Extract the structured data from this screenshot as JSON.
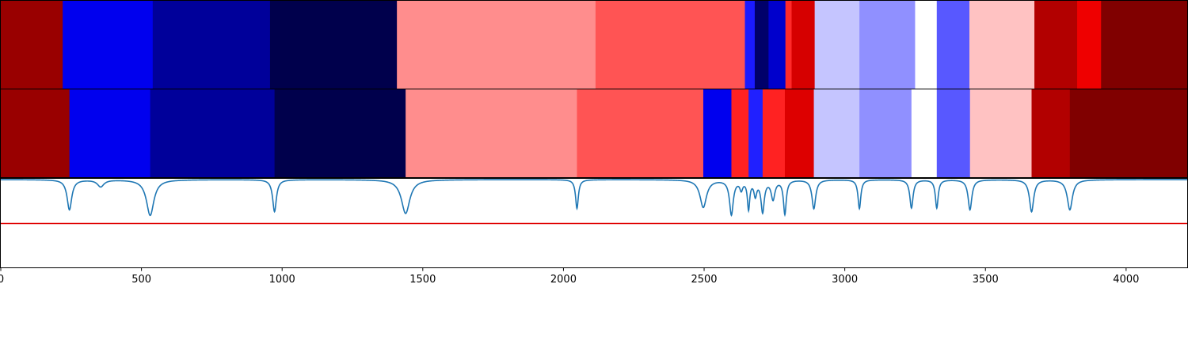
{
  "chart_data": {
    "type": "heatmap",
    "title": "",
    "xlabel": "",
    "ylabel": "",
    "xlim": [
      0,
      4220
    ],
    "x_ticks": [
      0,
      500,
      1000,
      1500,
      2000,
      2500,
      3000,
      3500,
      4000
    ],
    "x_tick_labels": [
      "0",
      "500",
      "1000",
      "1500",
      "2000",
      "2500",
      "3000",
      "3500",
      "4000"
    ],
    "colormap": "seismic",
    "color_scale": {
      "min_color": "#00004c",
      "mid_color": "#ffffff",
      "max_color": "#800000"
    },
    "bands": [
      {
        "name": "",
        "segments": [
          {
            "start": 0,
            "end": 220,
            "color": "#990000"
          },
          {
            "start": 220,
            "end": 540,
            "color": "#0000ee"
          },
          {
            "start": 540,
            "end": 957,
            "color": "#00009a"
          },
          {
            "start": 957,
            "end": 1408,
            "color": "#00004c"
          },
          {
            "start": 1408,
            "end": 2114,
            "color": "#ff8d8d"
          },
          {
            "start": 2114,
            "end": 2645,
            "color": "#ff5454"
          },
          {
            "start": 2645,
            "end": 2680,
            "color": "#1a1aff"
          },
          {
            "start": 2680,
            "end": 2729,
            "color": "#00006a"
          },
          {
            "start": 2729,
            "end": 2789,
            "color": "#0000cc"
          },
          {
            "start": 2789,
            "end": 2811,
            "color": "#ff2a2a"
          },
          {
            "start": 2811,
            "end": 2893,
            "color": "#d60000"
          },
          {
            "start": 2893,
            "end": 3052,
            "color": "#c5c5ff"
          },
          {
            "start": 3052,
            "end": 3250,
            "color": "#9090ff"
          },
          {
            "start": 3250,
            "end": 3327,
            "color": "#ffffff"
          },
          {
            "start": 3327,
            "end": 3443,
            "color": "#5858ff"
          },
          {
            "start": 3443,
            "end": 3674,
            "color": "#ffc2c2"
          },
          {
            "start": 3674,
            "end": 3826,
            "color": "#b20000"
          },
          {
            "start": 3826,
            "end": 3911,
            "color": "#ef0000"
          },
          {
            "start": 3911,
            "end": 4220,
            "color": "#800000"
          }
        ]
      },
      {
        "name": "",
        "segments": [
          {
            "start": 0,
            "end": 244,
            "color": "#990000"
          },
          {
            "start": 244,
            "end": 531,
            "color": "#0000ee"
          },
          {
            "start": 531,
            "end": 973,
            "color": "#00009a"
          },
          {
            "start": 973,
            "end": 1439,
            "color": "#00004c"
          },
          {
            "start": 1439,
            "end": 2048,
            "color": "#ff8d8d"
          },
          {
            "start": 2048,
            "end": 2497,
            "color": "#ff5454"
          },
          {
            "start": 2497,
            "end": 2597,
            "color": "#0000ee"
          },
          {
            "start": 2597,
            "end": 2658,
            "color": "#ff2222"
          },
          {
            "start": 2658,
            "end": 2708,
            "color": "#2020ff"
          },
          {
            "start": 2708,
            "end": 2787,
            "color": "#ff2222"
          },
          {
            "start": 2787,
            "end": 2890,
            "color": "#dd0000"
          },
          {
            "start": 2890,
            "end": 3052,
            "color": "#c5c5ff"
          },
          {
            "start": 3052,
            "end": 3237,
            "color": "#9090ff"
          },
          {
            "start": 3237,
            "end": 3327,
            "color": "#ffffff"
          },
          {
            "start": 3327,
            "end": 3445,
            "color": "#5858ff"
          },
          {
            "start": 3445,
            "end": 3664,
            "color": "#ffc2c2"
          },
          {
            "start": 3664,
            "end": 3800,
            "color": "#b20000"
          },
          {
            "start": 3800,
            "end": 4220,
            "color": "#800000"
          }
        ]
      }
    ],
    "spectrum": {
      "color": "#1f77b4",
      "baseline": 0.0,
      "ylim": [
        -1.4,
        0.0
      ],
      "threshold": -0.7,
      "threshold_color": "#e00000",
      "peaks": [
        {
          "x": 244,
          "depth": 0.48,
          "width": 10
        },
        {
          "x": 355,
          "depth": 0.11,
          "width": 14
        },
        {
          "x": 531,
          "depth": 0.57,
          "width": 16
        },
        {
          "x": 973,
          "depth": 0.51,
          "width": 8
        },
        {
          "x": 1439,
          "depth": 0.54,
          "width": 18
        },
        {
          "x": 2048,
          "depth": 0.46,
          "width": 6
        },
        {
          "x": 2497,
          "depth": 0.44,
          "width": 14
        },
        {
          "x": 2597,
          "depth": 0.55,
          "width": 8
        },
        {
          "x": 2632,
          "depth": 0.14,
          "width": 6
        },
        {
          "x": 2658,
          "depth": 0.45,
          "width": 5
        },
        {
          "x": 2682,
          "depth": 0.23,
          "width": 6
        },
        {
          "x": 2708,
          "depth": 0.5,
          "width": 7
        },
        {
          "x": 2745,
          "depth": 0.3,
          "width": 8
        },
        {
          "x": 2787,
          "depth": 0.54,
          "width": 6
        },
        {
          "x": 2890,
          "depth": 0.46,
          "width": 8
        },
        {
          "x": 3052,
          "depth": 0.46,
          "width": 6
        },
        {
          "x": 3237,
          "depth": 0.45,
          "width": 7
        },
        {
          "x": 3327,
          "depth": 0.45,
          "width": 6
        },
        {
          "x": 3445,
          "depth": 0.48,
          "width": 8
        },
        {
          "x": 3664,
          "depth": 0.51,
          "width": 9
        },
        {
          "x": 3800,
          "depth": 0.48,
          "width": 11
        }
      ]
    }
  }
}
